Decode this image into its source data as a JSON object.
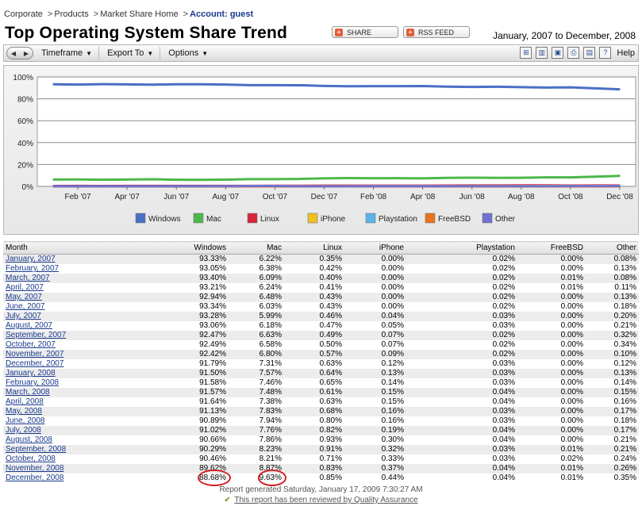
{
  "breadcrumb": {
    "items": [
      "Corporate",
      "Products",
      "Market Share Home"
    ],
    "account": "Account: guest"
  },
  "header": {
    "title": "Top Operating System Share Trend",
    "share_label": "SHARE",
    "rss_label": "RSS FEED",
    "date_range": "January, 2007 to December, 2008"
  },
  "toolbar": {
    "menus": [
      "Timeframe",
      "Export To",
      "Options"
    ],
    "help_label": "Help",
    "icons": [
      "grid-add-icon",
      "columns-icon",
      "image-icon",
      "print-icon",
      "pdf-icon",
      "help-icon"
    ]
  },
  "chart_data": {
    "type": "line",
    "y_ticks": [
      "100%",
      "80%",
      "60%",
      "40%",
      "20%",
      "0%"
    ],
    "ylim": [
      0,
      100
    ],
    "x_tick_labels": [
      "Feb '07",
      "Apr '07",
      "Jun '07",
      "Aug '07",
      "Oct '07",
      "Dec '07",
      "Feb '08",
      "Apr '08",
      "Jun '08",
      "Aug '08",
      "Oct '08",
      "Dec '08"
    ],
    "legend_placement": "bottom",
    "series": [
      {
        "name": "Windows",
        "color": "#4a6fc4",
        "values": [
          93.33,
          93.05,
          93.4,
          93.21,
          92.94,
          93.34,
          93.28,
          93.06,
          92.47,
          92.49,
          92.42,
          91.79,
          91.5,
          91.58,
          91.57,
          91.64,
          91.13,
          90.89,
          91.02,
          90.66,
          90.29,
          90.46,
          89.62,
          88.68
        ]
      },
      {
        "name": "Mac",
        "color": "#4cb84a",
        "values": [
          6.22,
          6.38,
          6.09,
          6.24,
          6.48,
          6.03,
          5.99,
          6.18,
          6.63,
          6.58,
          6.8,
          7.31,
          7.57,
          7.46,
          7.48,
          7.38,
          7.83,
          7.94,
          7.76,
          7.86,
          8.23,
          8.21,
          8.87,
          9.63
        ]
      },
      {
        "name": "Linux",
        "color": "#d8253a",
        "values": [
          0.35,
          0.42,
          0.4,
          0.41,
          0.43,
          0.43,
          0.46,
          0.47,
          0.49,
          0.5,
          0.57,
          0.63,
          0.64,
          0.65,
          0.61,
          0.63,
          0.68,
          0.8,
          0.82,
          0.93,
          0.91,
          0.71,
          0.83,
          0.85
        ]
      },
      {
        "name": "iPhone",
        "color": "#f0c020",
        "values": [
          0.0,
          0.0,
          0.0,
          0.0,
          0.0,
          0.0,
          0.04,
          0.05,
          0.07,
          0.07,
          0.09,
          0.12,
          0.13,
          0.14,
          0.15,
          0.15,
          0.16,
          0.16,
          0.19,
          0.3,
          0.32,
          0.33,
          0.37,
          0.44
        ]
      },
      {
        "name": "Playstation",
        "color": "#5ab4e8",
        "values": [
          0.02,
          0.02,
          0.02,
          0.02,
          0.02,
          0.02,
          0.03,
          0.03,
          0.02,
          0.02,
          0.02,
          0.03,
          0.03,
          0.03,
          0.04,
          0.04,
          0.03,
          0.03,
          0.04,
          0.04,
          0.03,
          0.03,
          0.04,
          0.04
        ]
      },
      {
        "name": "FreeBSD",
        "color": "#e8741c",
        "values": [
          0.0,
          0.0,
          0.01,
          0.01,
          0.0,
          0.0,
          0.0,
          0.0,
          0.0,
          0.0,
          0.0,
          0.0,
          0.0,
          0.0,
          0.0,
          0.0,
          0.0,
          0.0,
          0.0,
          0.0,
          0.01,
          0.02,
          0.01,
          0.01
        ]
      },
      {
        "name": "Other",
        "color": "#6f72d0",
        "values": [
          0.08,
          0.13,
          0.08,
          0.11,
          0.13,
          0.18,
          0.2,
          0.21,
          0.32,
          0.34,
          0.1,
          0.12,
          0.13,
          0.14,
          0.15,
          0.16,
          0.17,
          0.18,
          0.17,
          0.21,
          0.21,
          0.24,
          0.26,
          0.35
        ]
      }
    ]
  },
  "table": {
    "headers": [
      "Month",
      "Windows",
      "Mac",
      "Linux",
      "iPhone",
      "Playstation",
      "FreeBSD",
      "Other"
    ],
    "rows": [
      [
        "January, 2007",
        "93.33%",
        "6.22%",
        "0.35%",
        "0.00%",
        "0.02%",
        "0.00%",
        "0.08%"
      ],
      [
        "February, 2007",
        "93.05%",
        "6.38%",
        "0.42%",
        "0.00%",
        "0.02%",
        "0.00%",
        "0.13%"
      ],
      [
        "March, 2007",
        "93.40%",
        "6.09%",
        "0.40%",
        "0.00%",
        "0.02%",
        "0.01%",
        "0.08%"
      ],
      [
        "April, 2007",
        "93.21%",
        "6.24%",
        "0.41%",
        "0.00%",
        "0.02%",
        "0.01%",
        "0.11%"
      ],
      [
        "May, 2007",
        "92.94%",
        "6.48%",
        "0.43%",
        "0.00%",
        "0.02%",
        "0.00%",
        "0.13%"
      ],
      [
        "June, 2007",
        "93.34%",
        "6.03%",
        "0.43%",
        "0.00%",
        "0.02%",
        "0.00%",
        "0.18%"
      ],
      [
        "July, 2007",
        "93.28%",
        "5.99%",
        "0.46%",
        "0.04%",
        "0.03%",
        "0.00%",
        "0.20%"
      ],
      [
        "August, 2007",
        "93.06%",
        "6.18%",
        "0.47%",
        "0.05%",
        "0.03%",
        "0.00%",
        "0.21%"
      ],
      [
        "September, 2007",
        "92.47%",
        "6.63%",
        "0.49%",
        "0.07%",
        "0.02%",
        "0.00%",
        "0.32%"
      ],
      [
        "October, 2007",
        "92.49%",
        "6.58%",
        "0.50%",
        "0.07%",
        "0.02%",
        "0.00%",
        "0.34%"
      ],
      [
        "November, 2007",
        "92.42%",
        "6.80%",
        "0.57%",
        "0.09%",
        "0.02%",
        "0.00%",
        "0.10%"
      ],
      [
        "December, 2007",
        "91.79%",
        "7.31%",
        "0.63%",
        "0.12%",
        "0.03%",
        "0.00%",
        "0.12%"
      ],
      [
        "January, 2008",
        "91.50%",
        "7.57%",
        "0.64%",
        "0.13%",
        "0.03%",
        "0.00%",
        "0.13%"
      ],
      [
        "February, 2008",
        "91.58%",
        "7.46%",
        "0.65%",
        "0.14%",
        "0.03%",
        "0.00%",
        "0.14%"
      ],
      [
        "March, 2008",
        "91.57%",
        "7.48%",
        "0.61%",
        "0.15%",
        "0.04%",
        "0.00%",
        "0.15%"
      ],
      [
        "April, 2008",
        "91.64%",
        "7.38%",
        "0.63%",
        "0.15%",
        "0.04%",
        "0.00%",
        "0.16%"
      ],
      [
        "May, 2008",
        "91.13%",
        "7.83%",
        "0.68%",
        "0.16%",
        "0.03%",
        "0.00%",
        "0.17%"
      ],
      [
        "June, 2008",
        "90.89%",
        "7.94%",
        "0.80%",
        "0.16%",
        "0.03%",
        "0.00%",
        "0.18%"
      ],
      [
        "July, 2008",
        "91.02%",
        "7.76%",
        "0.82%",
        "0.19%",
        "0.04%",
        "0.00%",
        "0.17%"
      ],
      [
        "August, 2008",
        "90.66%",
        "7.86%",
        "0.93%",
        "0.30%",
        "0.04%",
        "0.00%",
        "0.21%"
      ],
      [
        "September, 2008",
        "90.29%",
        "8.23%",
        "0.91%",
        "0.32%",
        "0.03%",
        "0.01%",
        "0.21%"
      ],
      [
        "October, 2008",
        "90.46%",
        "8.21%",
        "0.71%",
        "0.33%",
        "0.03%",
        "0.02%",
        "0.24%"
      ],
      [
        "November, 2008",
        "89.62%",
        "8.87%",
        "0.83%",
        "0.37%",
        "0.04%",
        "0.01%",
        "0.26%"
      ],
      [
        "December, 2008",
        "88.68%",
        "9.63%",
        "0.85%",
        "0.44%",
        "0.04%",
        "0.01%",
        "0.35%"
      ]
    ],
    "highlighted_cells": [
      [
        23,
        1
      ],
      [
        23,
        2
      ]
    ],
    "highlight_color": "#d32020"
  },
  "footer": {
    "generated": "Report generated Saturday, January 17, 2009 7:30:27 AM",
    "qa": "This report has been reviewed by Quality Assurance"
  }
}
